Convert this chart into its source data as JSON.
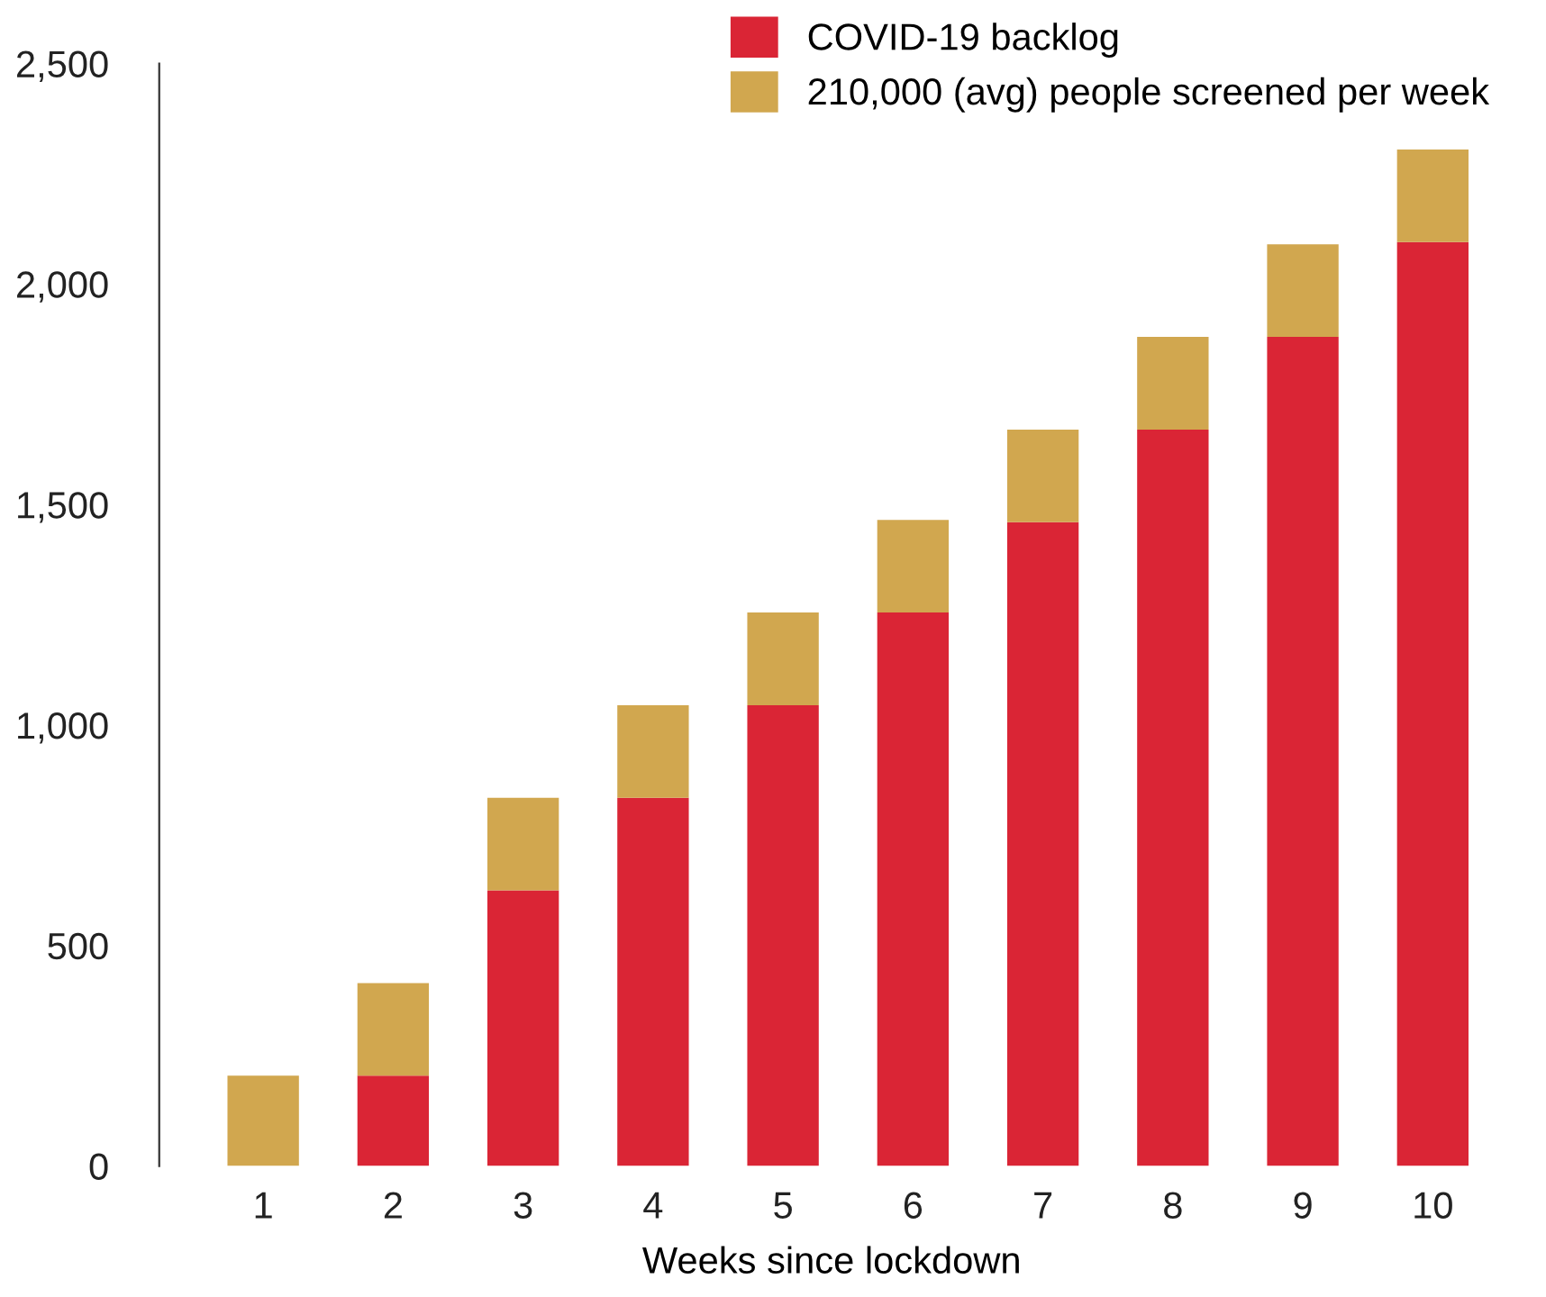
{
  "chart_data": {
    "type": "bar",
    "stacked": true,
    "xlabel": "Weeks since lockdown",
    "categories": [
      "1",
      "2",
      "3",
      "4",
      "5",
      "6",
      "7",
      "8",
      "9",
      "10"
    ],
    "series": [
      {
        "name": "COVID-19 backlog",
        "color": "#da2535",
        "values": [
          0,
          205,
          625,
          835,
          1045,
          1255,
          1460,
          1670,
          1880,
          2095
        ]
      },
      {
        "name": "210,000 (avg) people screened per week",
        "color": "#d1a74f",
        "values": [
          205,
          210,
          210,
          210,
          210,
          210,
          210,
          210,
          210,
          210
        ]
      }
    ],
    "ylim": [
      0,
      2500
    ],
    "yticks": [
      0,
      {
        "value": 500,
        "label": "500"
      },
      {
        "value": 1000,
        "label": "1,000"
      },
      {
        "value": 1500,
        "label": "1,500"
      },
      {
        "value": 2000,
        "label": "2,000"
      },
      {
        "value": 2500,
        "label": "2,500"
      }
    ],
    "grid": false,
    "legend": "top right"
  }
}
